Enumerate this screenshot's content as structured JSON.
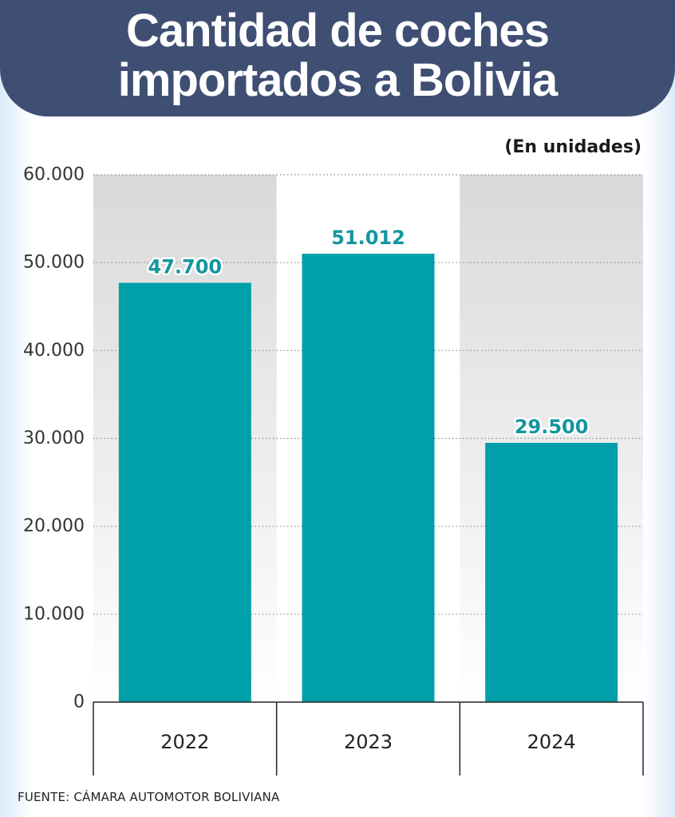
{
  "header": {
    "title_line1": "Cantidad de coches",
    "title_line2": "importados a Bolivia"
  },
  "unit_label": "(En unidades)",
  "source": "FUENTE: CÁMARA AUTOMOTOR BOLIVIANA",
  "colors": {
    "header": "#3f4f73",
    "bar": "#00a0ab",
    "value_label": "#12969e"
  },
  "chart_data": {
    "type": "bar",
    "title": "Cantidad de coches importados a Bolivia",
    "categories": [
      "2022",
      "2023",
      "2024"
    ],
    "values": [
      47700,
      51012,
      29500
    ],
    "value_labels": [
      "47.700",
      "51.012",
      "29.500"
    ],
    "ylim": [
      0,
      60000
    ],
    "yticks": [
      0,
      10000,
      20000,
      30000,
      40000,
      50000,
      60000
    ],
    "ytick_labels": [
      "0",
      "10.000",
      "20.000",
      "30.000",
      "40.000",
      "50.000",
      "60.000"
    ],
    "grid": true,
    "xlabel": "",
    "ylabel": "(En unidades)"
  }
}
